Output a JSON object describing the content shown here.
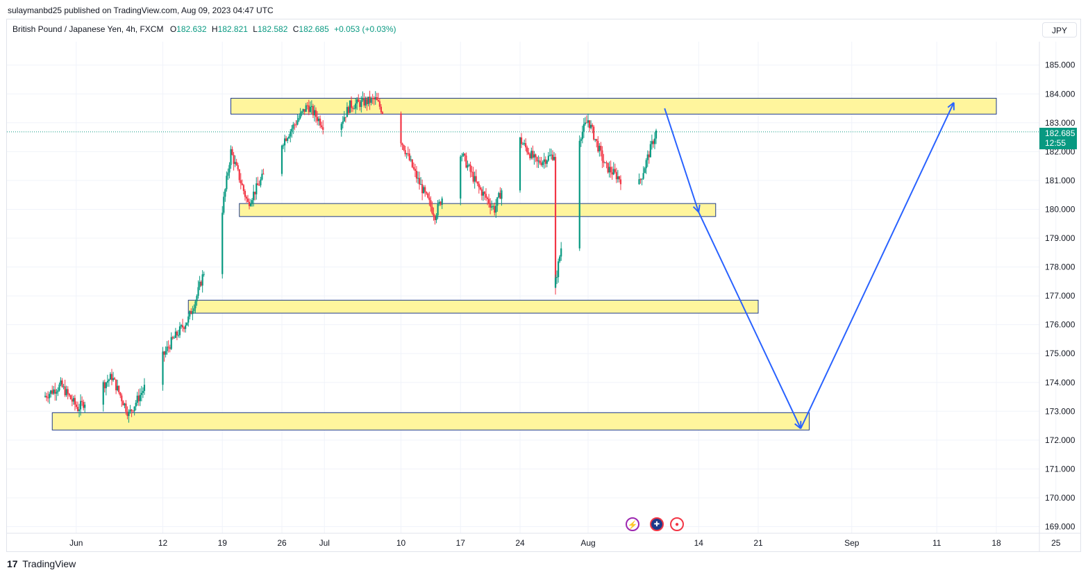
{
  "header": {
    "published_line": "sulaymanbd25 published on TradingView.com, Aug 09, 2023 04:47 UTC"
  },
  "symbol": {
    "name": "British Pound / Japanese Yen, 4h, FXCM",
    "open_label": "O",
    "open": "182.632",
    "high_label": "H",
    "high": "182.821",
    "low_label": "L",
    "low": "182.582",
    "close_label": "C",
    "close": "182.685",
    "change": "+0.053 (+0.03%)"
  },
  "currency": "JPY",
  "price_tag": {
    "price": "182.685",
    "countdown": "12:55"
  },
  "footer": {
    "brand": "TradingView",
    "logo_glyph": "17"
  },
  "event_icons": [
    "lightning-icon",
    "uk-flag-icon",
    "record-icon"
  ],
  "colors": {
    "up": "#089981",
    "down": "#f23645",
    "zone_fill": "#fff59d",
    "zone_border": "#1e3a8a",
    "arrow": "#2962ff"
  },
  "chart_data": {
    "type": "candlestick",
    "y_axis": {
      "min": 169,
      "max": 185,
      "ticks": [
        "185.000",
        "184.000",
        "183.000",
        "182.000",
        "181.000",
        "180.000",
        "179.000",
        "178.000",
        "177.000",
        "176.000",
        "175.000",
        "174.000",
        "173.000",
        "172.000",
        "171.000",
        "170.000",
        "169.000"
      ]
    },
    "x_axis": {
      "ticks": [
        "Jun",
        "12",
        "19",
        "26",
        "Jul",
        "10",
        "17",
        "24",
        "Aug",
        "14",
        "21",
        "Sep",
        "11",
        "18",
        "25"
      ]
    },
    "last_price": 182.685,
    "anchors": [
      [
        "2023-05-29",
        173.5
      ],
      [
        "2023-05-31",
        173.9
      ],
      [
        "2023-06-02",
        173.1
      ],
      [
        "2023-06-06",
        174.2
      ],
      [
        "2023-06-08",
        172.9
      ],
      [
        "2023-06-11",
        174.4
      ],
      [
        "2023-06-13",
        175.4
      ],
      [
        "2023-06-15",
        176.2
      ],
      [
        "2023-06-16",
        177.0
      ],
      [
        "2023-06-19",
        180.0
      ],
      [
        "2023-06-20",
        182.0
      ],
      [
        "2023-06-22",
        180.2
      ],
      [
        "2023-06-26",
        182.3
      ],
      [
        "2023-06-29",
        183.6
      ],
      [
        "2023-07-02",
        182.5
      ],
      [
        "2023-07-04",
        183.6
      ],
      [
        "2023-07-07",
        183.8
      ],
      [
        "2023-07-10",
        182.4
      ],
      [
        "2023-07-12",
        181.0
      ],
      [
        "2023-07-14",
        179.8
      ],
      [
        "2023-07-17",
        182.0
      ],
      [
        "2023-07-19",
        180.8
      ],
      [
        "2023-07-21",
        180.0
      ],
      [
        "2023-07-24",
        182.4
      ],
      [
        "2023-07-26",
        181.6
      ],
      [
        "2023-07-28",
        181.9
      ],
      [
        "2023-07-28",
        177.2
      ],
      [
        "2023-07-31",
        182.5
      ],
      [
        "2023-08-01",
        183.1
      ],
      [
        "2023-08-03",
        181.5
      ],
      [
        "2023-08-05",
        181.0
      ],
      [
        "2023-08-07",
        180.9
      ],
      [
        "2023-08-09",
        182.685
      ]
    ],
    "zones": [
      {
        "name": "resistance-zone",
        "from": "2023-06-20",
        "to": "2023-09-18",
        "low": 183.3,
        "high": 183.85
      },
      {
        "name": "support-zone-180",
        "from": "2023-06-21",
        "to": "2023-08-16",
        "low": 179.75,
        "high": 180.2
      },
      {
        "name": "support-zone-176-5",
        "from": "2023-06-15",
        "to": "2023-08-21",
        "low": 176.4,
        "high": 176.85
      },
      {
        "name": "support-zone-172-5",
        "from": "2023-05-30",
        "to": "2023-08-27",
        "low": 172.35,
        "high": 172.95
      }
    ],
    "projection_path": [
      [
        "2023-08-10",
        183.5
      ],
      [
        "2023-08-14",
        179.9
      ],
      [
        "2023-08-26",
        172.4
      ],
      [
        "2023-09-13",
        183.7
      ]
    ]
  }
}
